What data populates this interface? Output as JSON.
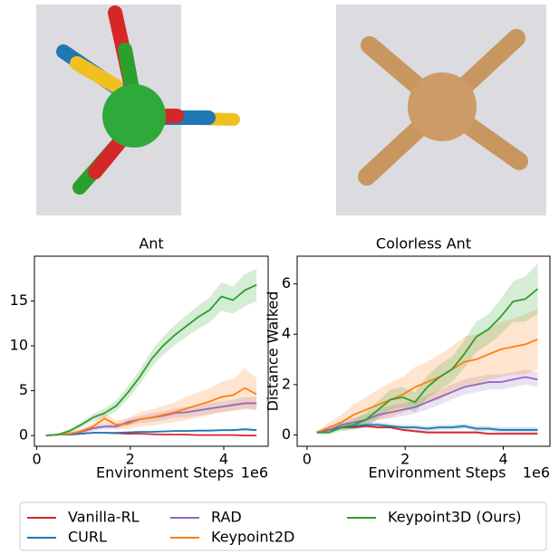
{
  "chart_data": [
    {
      "type": "line",
      "title": "Ant",
      "xlabel": "Environment Steps",
      "x_offset_label": "1e6",
      "x": [
        0.2,
        0.45,
        0.7,
        0.95,
        1.2,
        1.45,
        1.7,
        1.95,
        2.2,
        2.45,
        2.7,
        2.95,
        3.2,
        3.45,
        3.7,
        3.95,
        4.2,
        4.45,
        4.7
      ],
      "xlim": [
        -0.05,
        4.95
      ],
      "xticks": [
        0,
        2,
        4
      ],
      "ylim": [
        -1.2,
        20
      ],
      "yticks": [
        0,
        5,
        10,
        15
      ],
      "series": [
        {
          "name": "Vanilla-RL",
          "color": "#d62728",
          "values": [
            0,
            0.1,
            0.1,
            0.2,
            0.3,
            0.3,
            0.25,
            0.2,
            0.2,
            0.15,
            0.1,
            0.1,
            0.1,
            0.05,
            0.05,
            0.05,
            0.05,
            0,
            0
          ],
          "errors": [
            0.05,
            0.05,
            0.05,
            0.05,
            0.05,
            0.05,
            0.05,
            0.05,
            0.05,
            0.05,
            0.05,
            0.05,
            0.05,
            0.05,
            0.05,
            0.05,
            0.05,
            0.05,
            0.05
          ]
        },
        {
          "name": "CURL",
          "color": "#1f77b4",
          "values": [
            0,
            0.1,
            0.1,
            0.2,
            0.3,
            0.3,
            0.3,
            0.35,
            0.4,
            0.4,
            0.45,
            0.5,
            0.5,
            0.55,
            0.55,
            0.6,
            0.6,
            0.7,
            0.6
          ],
          "errors": [
            0,
            0.05,
            0.05,
            0.05,
            0.1,
            0.1,
            0.1,
            0.1,
            0.1,
            0.1,
            0.1,
            0.1,
            0.1,
            0.1,
            0.1,
            0.1,
            0.1,
            0.15,
            0.1
          ]
        },
        {
          "name": "RAD",
          "color": "#9467bd",
          "values": [
            0,
            0.1,
            0.2,
            0.4,
            0.8,
            1,
            1,
            1.5,
            1.8,
            2,
            2.2,
            2.5,
            2.6,
            2.8,
            3,
            3.2,
            3.4,
            3.6,
            3.6
          ],
          "errors": [
            0,
            0.1,
            0.1,
            0.2,
            0.3,
            0.3,
            0.3,
            0.4,
            0.4,
            0.5,
            0.5,
            0.5,
            0.6,
            0.6,
            0.6,
            0.6,
            0.6,
            0.7,
            0.7
          ]
        },
        {
          "name": "Keypoint2D",
          "color": "#ff7f0e",
          "values": [
            0,
            0.1,
            0.2,
            0.5,
            1,
            1.9,
            1.2,
            1.3,
            1.8,
            2,
            2.3,
            2.6,
            3,
            3.4,
            3.8,
            4.3,
            4.5,
            5.3,
            4.6
          ],
          "errors": [
            0,
            0.1,
            0.2,
            0.3,
            0.4,
            0.6,
            0.5,
            0.6,
            0.8,
            0.9,
            1,
            1.1,
            1.3,
            1.4,
            1.5,
            1.7,
            1.8,
            2.2,
            1.8
          ]
        },
        {
          "name": "Keypoint3D (Ours)",
          "color": "#2ca02c",
          "values": [
            0,
            0.1,
            0.5,
            1.2,
            2,
            2.5,
            3.3,
            4.8,
            6.5,
            8.5,
            10,
            11.2,
            12.2,
            13.2,
            14,
            15.5,
            15.1,
            16.2,
            16.8
          ],
          "errors": [
            0,
            0.1,
            0.2,
            0.3,
            0.4,
            0.5,
            0.6,
            0.7,
            0.8,
            0.9,
            1,
            1.1,
            1.2,
            1.3,
            1.4,
            1.6,
            1.5,
            1.8,
            1.8
          ]
        }
      ]
    },
    {
      "type": "line",
      "title": "Colorless Ant",
      "xlabel": "Environment Steps",
      "x_offset_label": "1e6",
      "ylabel": "Distance Walked",
      "x": [
        0.2,
        0.45,
        0.7,
        0.95,
        1.2,
        1.45,
        1.7,
        1.95,
        2.2,
        2.45,
        2.7,
        2.95,
        3.2,
        3.45,
        3.7,
        3.95,
        4.2,
        4.45,
        4.7
      ],
      "xlim": [
        -0.2,
        4.95
      ],
      "xticks": [
        0,
        2,
        4
      ],
      "ylim": [
        -0.45,
        7.1
      ],
      "yticks": [
        0,
        2,
        4,
        6
      ],
      "series": [
        {
          "name": "Vanilla-RL",
          "color": "#d62728",
          "values": [
            0.1,
            0.2,
            0.3,
            0.3,
            0.35,
            0.3,
            0.3,
            0.2,
            0.15,
            0.1,
            0.1,
            0.1,
            0.1,
            0.1,
            0.05,
            0.05,
            0.05,
            0.05,
            0.05
          ],
          "errors": [
            0.05,
            0.05,
            0.05,
            0.05,
            0.05,
            0.05,
            0.05,
            0.05,
            0.05,
            0.05,
            0.05,
            0.05,
            0.05,
            0.05,
            0.05,
            0.05,
            0.05,
            0.05,
            0.05
          ]
        },
        {
          "name": "CURL",
          "color": "#1f77b4",
          "values": [
            0.1,
            0.2,
            0.3,
            0.35,
            0.4,
            0.4,
            0.35,
            0.3,
            0.3,
            0.25,
            0.3,
            0.3,
            0.35,
            0.25,
            0.25,
            0.2,
            0.2,
            0.2,
            0.2
          ],
          "errors": [
            0.05,
            0.05,
            0.1,
            0.1,
            0.1,
            0.1,
            0.1,
            0.1,
            0.1,
            0.1,
            0.1,
            0.1,
            0.1,
            0.1,
            0.1,
            0.1,
            0.1,
            0.1,
            0.1
          ]
        },
        {
          "name": "RAD",
          "color": "#9467bd",
          "values": [
            0.1,
            0.2,
            0.4,
            0.5,
            0.6,
            0.8,
            0.9,
            1,
            1.1,
            1.3,
            1.5,
            1.7,
            1.9,
            2,
            2.1,
            2.1,
            2.2,
            2.3,
            2.2
          ],
          "errors": [
            0.05,
            0.1,
            0.15,
            0.2,
            0.2,
            0.2,
            0.25,
            0.25,
            0.25,
            0.3,
            0.3,
            0.3,
            0.3,
            0.3,
            0.3,
            0.3,
            0.3,
            0.3,
            0.3
          ]
        },
        {
          "name": "Keypoint2D",
          "color": "#ff7f0e",
          "values": [
            0.1,
            0.3,
            0.5,
            0.8,
            1,
            1.2,
            1.4,
            1.6,
            1.9,
            2.1,
            2.3,
            2.6,
            2.9,
            3,
            3.2,
            3.4,
            3.5,
            3.6,
            3.8
          ],
          "errors": [
            0.05,
            0.2,
            0.3,
            0.4,
            0.5,
            0.6,
            0.7,
            0.7,
            0.8,
            0.8,
            0.9,
            0.9,
            1,
            1,
            1,
            1.1,
            1.1,
            1.2,
            1.2
          ]
        },
        {
          "name": "Keypoint3D (Ours)",
          "color": "#2ca02c",
          "values": [
            0.1,
            0.1,
            0.3,
            0.4,
            0.6,
            1,
            1.4,
            1.5,
            1.3,
            1.9,
            2.3,
            2.6,
            3.2,
            3.9,
            4.2,
            4.7,
            5.3,
            5.4,
            5.8
          ],
          "errors": [
            0.05,
            0.1,
            0.15,
            0.2,
            0.3,
            0.35,
            0.4,
            0.4,
            0.4,
            0.45,
            0.5,
            0.5,
            0.55,
            0.6,
            0.6,
            0.7,
            0.8,
            0.9,
            1
          ]
        }
      ]
    }
  ]
}
